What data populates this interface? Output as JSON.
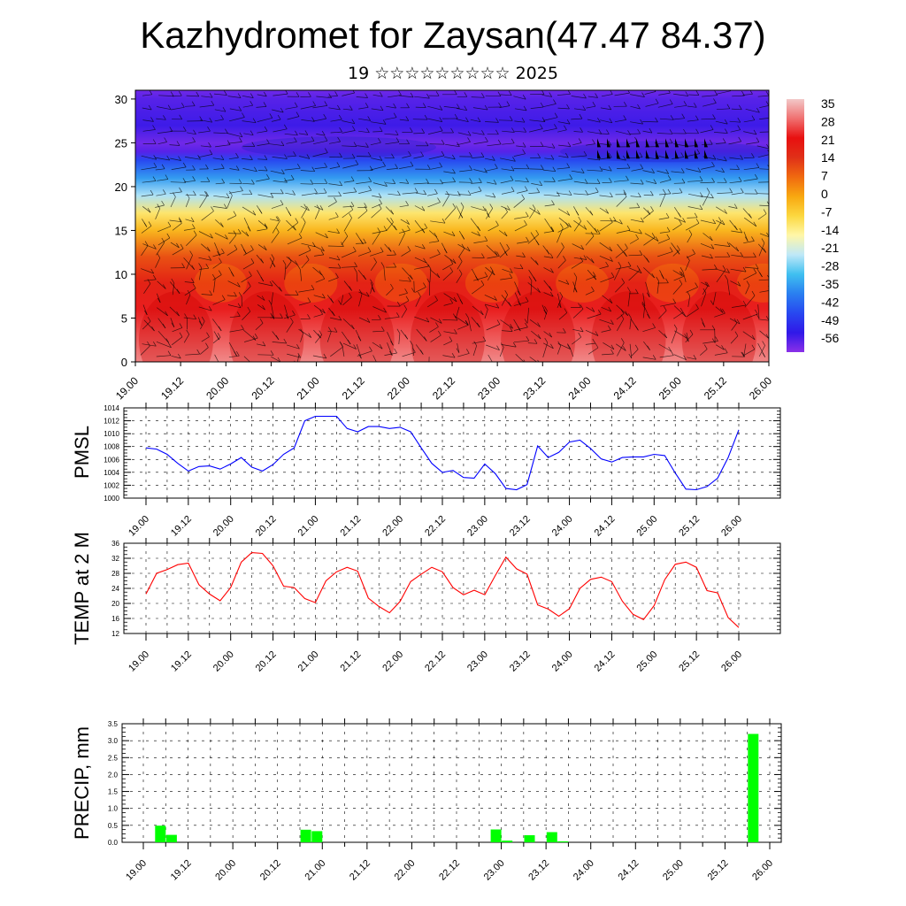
{
  "title": "Kazhydromet for Zaysan(47.47 84.37)",
  "subtitle": "19 ☆☆☆☆☆☆☆☆☆ 2025",
  "time_labels": [
    "19.00",
    "19.12",
    "20.00",
    "20.12",
    "21.00",
    "21.12",
    "22.00",
    "22.12",
    "23.00",
    "23.12",
    "24.00",
    "24.12",
    "25.00",
    "25.12",
    "26.00"
  ],
  "chart_data": [
    {
      "type": "heatmap",
      "description_id": "vertical-temperature-wind-section",
      "x_tick_labels": [
        "19.00",
        "19.12",
        "20.00",
        "20.12",
        "21.00",
        "21.12",
        "22.00",
        "22.12",
        "23.00",
        "23.12",
        "24.00",
        "24.12",
        "25.00",
        "25.12",
        "26.00"
      ],
      "y_ticks": [
        0,
        5,
        10,
        15,
        20,
        25,
        30
      ],
      "ylim": [
        0,
        31
      ],
      "colorbar_labels": [
        "35",
        "28",
        "21",
        "14",
        "7",
        "0",
        "-7",
        "-14",
        "-21",
        "-28",
        "-35",
        "-42",
        "-49",
        "-56"
      ],
      "colorbar_colors": [
        "#f2c8c8",
        "#f07070",
        "#e81010",
        "#e03018",
        "#f06a10",
        "#f8a810",
        "#fcd840",
        "#fff7a8",
        "#bfe8f8",
        "#40c0f0",
        "#2a7ff0",
        "#2848f0",
        "#3018e8",
        "#8a30e8"
      ],
      "level_temperature": [
        [
          0,
          30
        ],
        [
          3,
          26
        ],
        [
          6,
          22
        ],
        [
          9,
          17
        ],
        [
          12,
          10
        ],
        [
          15,
          -2
        ],
        [
          17,
          -10
        ],
        [
          19,
          -22
        ],
        [
          21,
          -32
        ],
        [
          23,
          -42
        ],
        [
          24,
          -52
        ],
        [
          25,
          -54
        ],
        [
          27,
          -50
        ],
        [
          30,
          -52
        ],
        [
          31,
          -54
        ]
      ]
    },
    {
      "type": "line",
      "ylabel": "PMSL",
      "x_tick_labels": [
        "19.00",
        "19.12",
        "20.00",
        "20.12",
        "21.00",
        "21.12",
        "22.00",
        "22.12",
        "23.00",
        "23.12",
        "24.00",
        "24.12",
        "25.00",
        "25.12",
        "26.00"
      ],
      "ylim": [
        1000,
        1014
      ],
      "y_ticks": [
        1000,
        1002,
        1004,
        1006,
        1008,
        1010,
        1012,
        1014
      ],
      "series": [
        {
          "color": "#0000ff",
          "values": [
            1007.8,
            1007.6,
            1006.8,
            1005.4,
            1004.2,
            1004.9,
            1005.0,
            1004.5,
            1005.3,
            1006.3,
            1004.8,
            1004.2,
            1005.2,
            1006.8,
            1007.8,
            1012.0,
            1012.7,
            1012.7,
            1012.7,
            1010.8,
            1010.3,
            1011.1,
            1011.1,
            1010.8,
            1011.0,
            1010.3,
            1007.8,
            1005.4,
            1004.0,
            1004.3,
            1003.2,
            1003.1,
            1005.3,
            1003.8,
            1001.5,
            1001.3,
            1002.1,
            1008.1,
            1006.3,
            1007.1,
            1008.7,
            1009.0,
            1007.7,
            1006.1,
            1005.6,
            1006.3,
            1006.4,
            1006.4,
            1006.8,
            1006.6,
            1003.9,
            1001.4,
            1001.3,
            1001.8,
            1003.1,
            1006.3,
            1010.6
          ]
        }
      ]
    },
    {
      "type": "line",
      "ylabel": "TEMP at 2 M",
      "x_tick_labels": [
        "19.00",
        "19.12",
        "20.00",
        "20.12",
        "21.00",
        "21.12",
        "22.00",
        "22.12",
        "23.00",
        "23.12",
        "24.00",
        "24.12",
        "25.00",
        "25.12",
        "26.00"
      ],
      "ylim": [
        12,
        36
      ],
      "y_ticks": [
        12,
        16,
        20,
        24,
        28,
        32,
        36
      ],
      "series": [
        {
          "color": "#ff0000",
          "values": [
            22.5,
            28.0,
            29.0,
            30.3,
            30.7,
            25.0,
            22.5,
            20.7,
            24.2,
            31.0,
            33.5,
            33.3,
            30.0,
            24.6,
            24.2,
            21.3,
            20.2,
            26.0,
            28.4,
            29.6,
            28.6,
            21.4,
            19.2,
            17.5,
            20.5,
            25.8,
            27.8,
            29.6,
            28.4,
            24.2,
            22.3,
            23.5,
            22.3,
            27.4,
            32.3,
            29.2,
            27.8,
            19.6,
            18.5,
            16.6,
            18.6,
            24.0,
            26.4,
            27.0,
            25.8,
            20.6,
            17.1,
            15.7,
            19.4,
            26.3,
            30.4,
            31.0,
            29.6,
            23.4,
            22.8,
            16.2,
            13.6
          ]
        }
      ]
    },
    {
      "type": "bar",
      "ylabel": "PRECIP, mm",
      "x_tick_labels": [
        "19.00",
        "19.12",
        "20.00",
        "20.12",
        "21.00",
        "21.12",
        "22.00",
        "22.12",
        "23.00",
        "23.12",
        "24.00",
        "24.12",
        "25.00",
        "25.12",
        "26.00"
      ],
      "ylim": [
        0,
        3.5
      ],
      "y_ticks": [
        "0.0",
        "0.5",
        "1.0",
        "1.5",
        "2.0",
        "2.5",
        "3.0",
        "3.5"
      ],
      "bar_color": "#00ff00",
      "values": [
        0,
        0,
        0.49,
        0.22,
        0,
        0,
        0,
        0,
        0,
        0,
        0,
        0,
        0,
        0,
        0,
        0.37,
        0.33,
        0,
        0,
        0,
        0,
        0,
        0,
        0,
        0,
        0,
        0,
        0,
        0,
        0,
        0,
        0,
        0.38,
        0.05,
        0,
        0.21,
        0,
        0.3,
        0.03,
        0,
        0,
        0,
        0,
        0,
        0,
        0,
        0,
        0,
        0,
        0,
        0,
        0,
        0,
        0,
        0,
        3.2,
        0
      ]
    }
  ]
}
